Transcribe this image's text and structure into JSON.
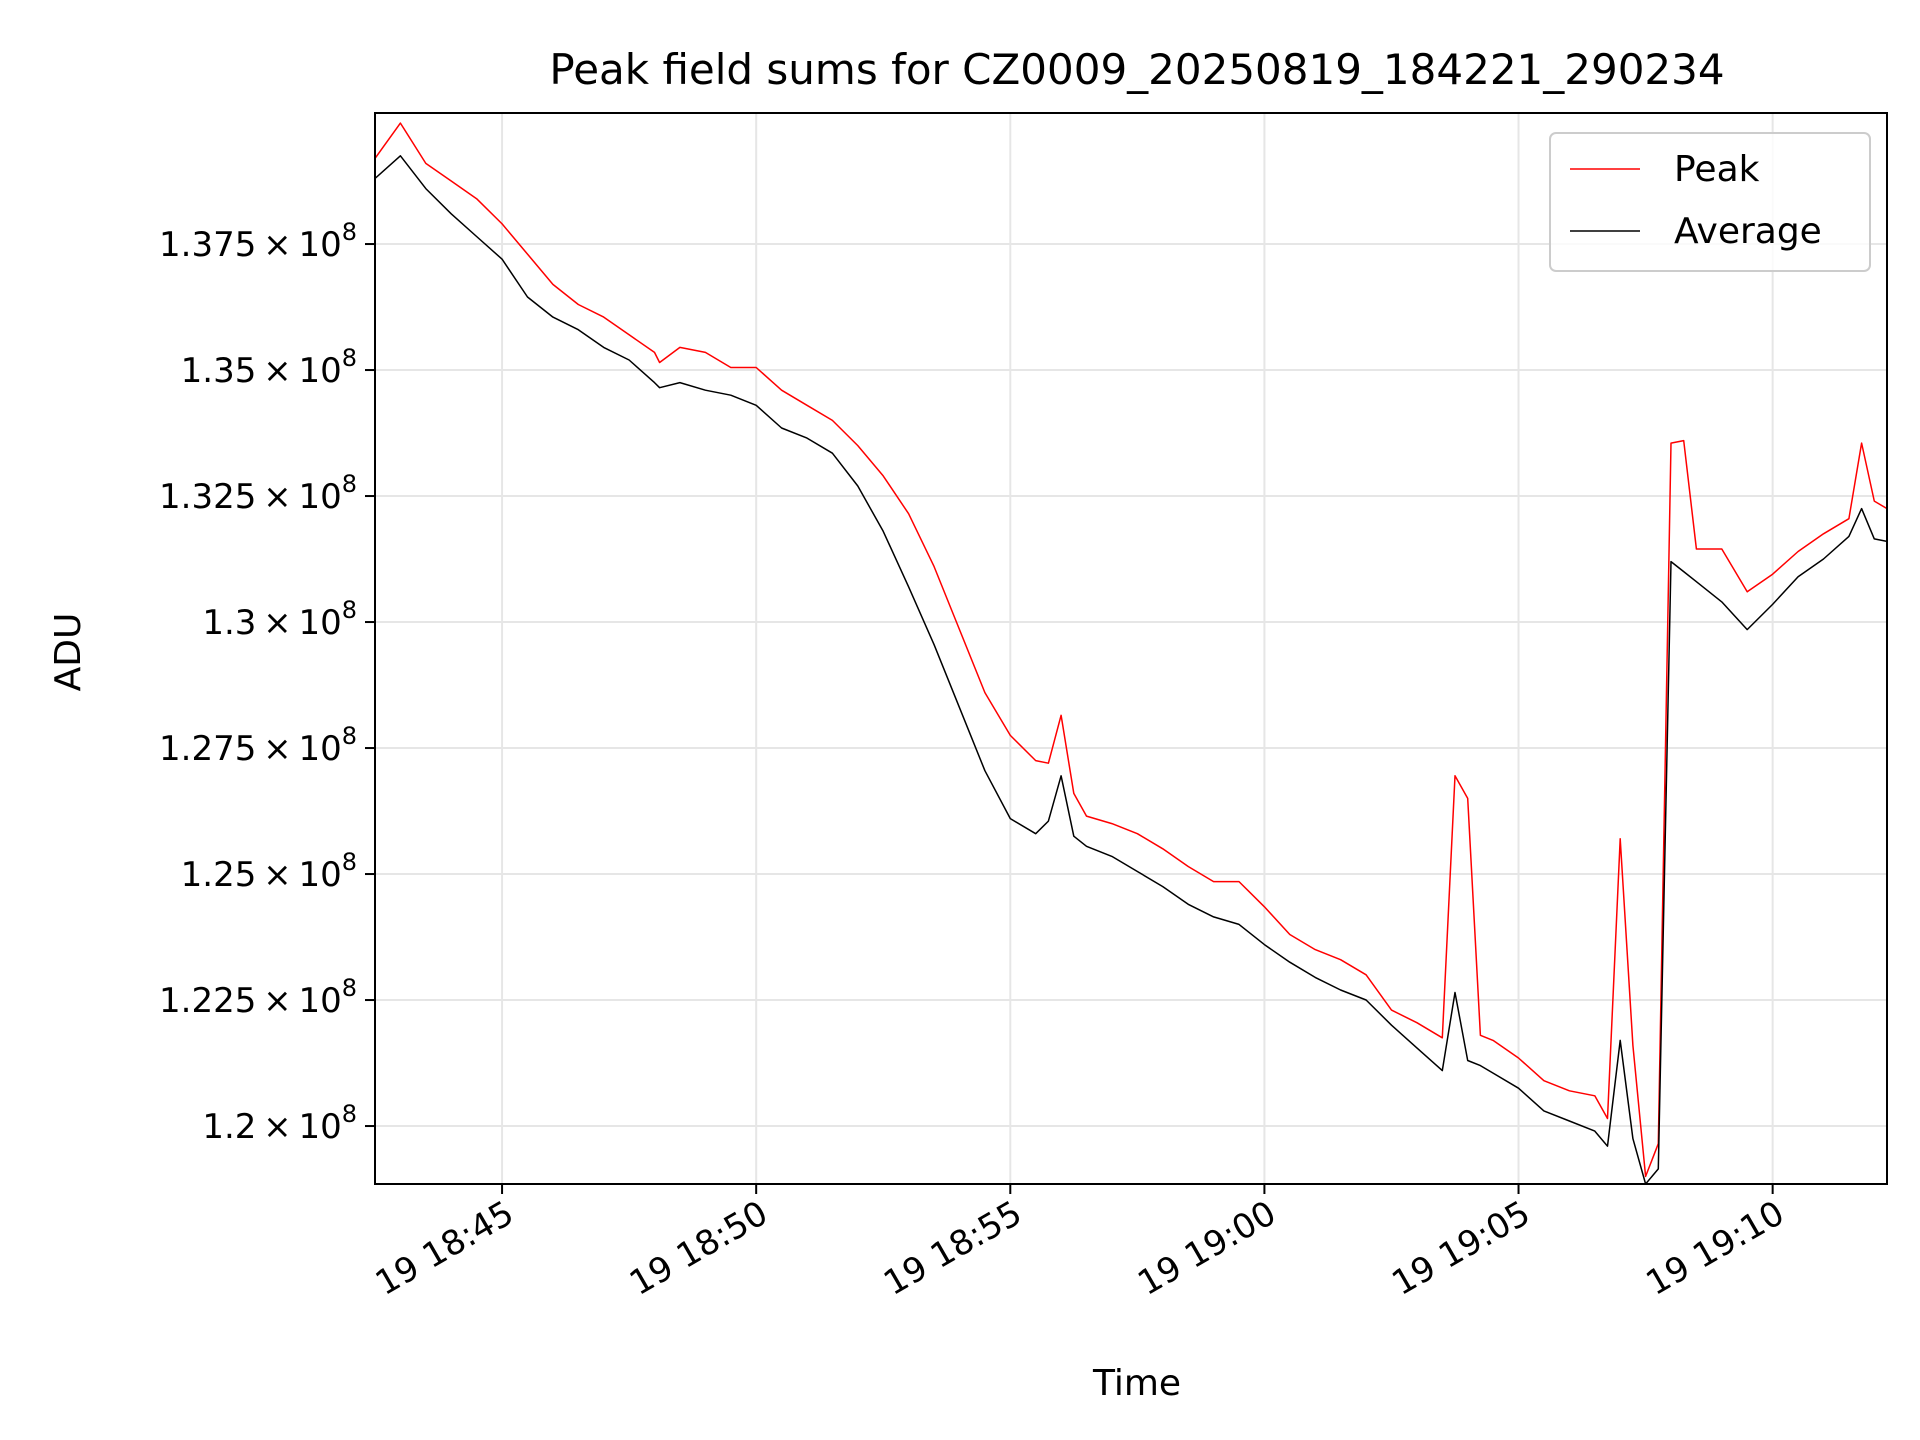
{
  "chart_data": {
    "type": "line",
    "title": "Peak field sums for CZ0009_20250819_184221_290234",
    "xlabel": "Time",
    "ylabel": "ADU",
    "x_start": "2025-08-19T18:42:30",
    "x_end": "2025-08-19T19:12:15",
    "xlim_minutes": [
      0,
      29.75
    ],
    "ylim": [
      118850000,
      140100000
    ],
    "x_ticks": [
      {
        "label": "19 18:45",
        "minute": 2.5
      },
      {
        "label": "19 18:50",
        "minute": 7.5
      },
      {
        "label": "19 18:55",
        "minute": 12.5
      },
      {
        "label": "19 19:00",
        "minute": 17.5
      },
      {
        "label": "19 19:05",
        "minute": 22.5
      },
      {
        "label": "19 19:10",
        "minute": 27.5
      }
    ],
    "y_ticks": [
      {
        "label": "1.2 × 10^8",
        "mant": "1.2",
        "value": 120000000
      },
      {
        "label": "1.225 × 10^8",
        "mant": "1.225",
        "value": 122500000
      },
      {
        "label": "1.25 × 10^8",
        "mant": "1.25",
        "value": 125000000
      },
      {
        "label": "1.275 × 10^8",
        "mant": "1.275",
        "value": 127500000
      },
      {
        "label": "1.3 × 10^8",
        "mant": "1.3",
        "value": 130000000
      },
      {
        "label": "1.325 × 10^8",
        "mant": "1.325",
        "value": 132500000
      },
      {
        "label": "1.35 × 10^8",
        "mant": "1.35",
        "value": 135000000
      },
      {
        "label": "1.375 × 10^8",
        "mant": "1.375",
        "value": 137500000
      }
    ],
    "grid": true,
    "legend_position": "upper right",
    "series": [
      {
        "name": "Peak",
        "color": "#ff0000",
        "points": [
          [
            0,
            139.2
          ],
          [
            0.5,
            139.9
          ],
          [
            1,
            139.1
          ],
          [
            1.5,
            138.75
          ],
          [
            2,
            138.4
          ],
          [
            2.5,
            137.9
          ],
          [
            3,
            137.3
          ],
          [
            3.5,
            136.7
          ],
          [
            4,
            136.3
          ],
          [
            4.5,
            136.05
          ],
          [
            5,
            135.7
          ],
          [
            5.5,
            135.35
          ],
          [
            5.6,
            135.15
          ],
          [
            6,
            135.45
          ],
          [
            6.5,
            135.35
          ],
          [
            7,
            135.05
          ],
          [
            7.5,
            135.05
          ],
          [
            8,
            134.6
          ],
          [
            8.5,
            134.3
          ],
          [
            9,
            134.0
          ],
          [
            9.5,
            133.5
          ],
          [
            10,
            132.9
          ],
          [
            10.5,
            132.15
          ],
          [
            11,
            131.1
          ],
          [
            11.5,
            129.85
          ],
          [
            12,
            128.6
          ],
          [
            12.5,
            127.75
          ],
          [
            13,
            127.25
          ],
          [
            13.25,
            127.2
          ],
          [
            13.5,
            128.15
          ],
          [
            13.75,
            126.6
          ],
          [
            14,
            126.15
          ],
          [
            14.5,
            126.0
          ],
          [
            15,
            125.8
          ],
          [
            15.5,
            125.5
          ],
          [
            16,
            125.15
          ],
          [
            16.5,
            124.85
          ],
          [
            17,
            124.85
          ],
          [
            17.5,
            124.35
          ],
          [
            18,
            123.8
          ],
          [
            18.5,
            123.5
          ],
          [
            19,
            123.3
          ],
          [
            19.5,
            123.0
          ],
          [
            20,
            122.3
          ],
          [
            20.5,
            122.05
          ],
          [
            21,
            121.75
          ],
          [
            21.25,
            126.95
          ],
          [
            21.5,
            126.5
          ],
          [
            21.75,
            121.8
          ],
          [
            22,
            121.7
          ],
          [
            22.5,
            121.35
          ],
          [
            23,
            120.9
          ],
          [
            23.5,
            120.7
          ],
          [
            24,
            120.6
          ],
          [
            24.25,
            120.15
          ],
          [
            24.5,
            125.7
          ],
          [
            24.75,
            121.6
          ],
          [
            25,
            119.0
          ],
          [
            25.25,
            119.65
          ],
          [
            25.5,
            133.55
          ],
          [
            25.75,
            133.6
          ],
          [
            26,
            131.45
          ],
          [
            26.5,
            131.45
          ],
          [
            27,
            130.6
          ],
          [
            27.5,
            130.95
          ],
          [
            28,
            131.4
          ],
          [
            28.5,
            131.75
          ],
          [
            29,
            132.05
          ],
          [
            29.25,
            133.55
          ],
          [
            29.5,
            132.4
          ],
          [
            29.75,
            132.25
          ]
        ]
      },
      {
        "name": "Average",
        "color": "#000000",
        "points": [
          [
            0,
            138.8
          ],
          [
            0.5,
            139.25
          ],
          [
            1,
            138.6
          ],
          [
            1.5,
            138.1
          ],
          [
            2,
            137.65
          ],
          [
            2.5,
            137.2
          ],
          [
            3,
            136.45
          ],
          [
            3.5,
            136.05
          ],
          [
            4,
            135.8
          ],
          [
            4.5,
            135.45
          ],
          [
            5,
            135.2
          ],
          [
            5.5,
            134.75
          ],
          [
            5.6,
            134.65
          ],
          [
            6,
            134.75
          ],
          [
            6.5,
            134.6
          ],
          [
            7,
            134.5
          ],
          [
            7.5,
            134.3
          ],
          [
            8,
            133.85
          ],
          [
            8.5,
            133.65
          ],
          [
            9,
            133.35
          ],
          [
            9.5,
            132.7
          ],
          [
            10,
            131.8
          ],
          [
            10.5,
            130.7
          ],
          [
            11,
            129.55
          ],
          [
            11.5,
            128.3
          ],
          [
            12,
            127.05
          ],
          [
            12.5,
            126.1
          ],
          [
            13,
            125.8
          ],
          [
            13.25,
            126.05
          ],
          [
            13.5,
            126.95
          ],
          [
            13.75,
            125.75
          ],
          [
            14,
            125.55
          ],
          [
            14.5,
            125.35
          ],
          [
            15,
            125.05
          ],
          [
            15.5,
            124.75
          ],
          [
            16,
            124.4
          ],
          [
            16.5,
            124.15
          ],
          [
            17,
            124.0
          ],
          [
            17.5,
            123.6
          ],
          [
            18,
            123.25
          ],
          [
            18.5,
            122.95
          ],
          [
            19,
            122.7
          ],
          [
            19.5,
            122.5
          ],
          [
            20,
            122.0
          ],
          [
            20.5,
            121.55
          ],
          [
            21,
            121.1
          ],
          [
            21.25,
            122.65
          ],
          [
            21.5,
            121.3
          ],
          [
            21.75,
            121.2
          ],
          [
            22,
            121.05
          ],
          [
            22.5,
            120.75
          ],
          [
            23,
            120.3
          ],
          [
            23.5,
            120.1
          ],
          [
            24,
            119.9
          ],
          [
            24.25,
            119.6
          ],
          [
            24.5,
            121.7
          ],
          [
            24.75,
            119.75
          ],
          [
            25,
            118.85
          ],
          [
            25.25,
            119.15
          ],
          [
            25.5,
            131.2
          ],
          [
            25.75,
            131.0
          ],
          [
            26,
            130.8
          ],
          [
            26.5,
            130.4
          ],
          [
            27,
            129.85
          ],
          [
            27.5,
            130.35
          ],
          [
            28,
            130.9
          ],
          [
            28.5,
            131.25
          ],
          [
            29,
            131.7
          ],
          [
            29.25,
            132.25
          ],
          [
            29.5,
            131.65
          ],
          [
            29.75,
            131.6
          ]
        ]
      }
    ]
  }
}
